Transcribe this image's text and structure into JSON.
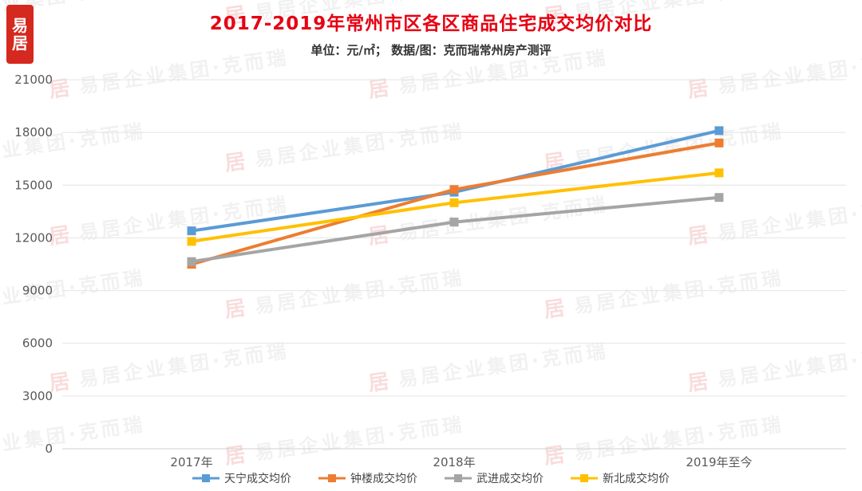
{
  "title": "2017-2019年常州市区各区商品住宅成交均价对比",
  "subtitle": "单位：元/㎡；  数据/图：克而瑞常州房产测评",
  "watermark": {
    "text": "易居企业集团·克而瑞",
    "logo_glyph": "居"
  },
  "corner_logo": {
    "top_char": "易",
    "bottom_char": "居"
  },
  "chart_data": {
    "type": "line",
    "categories": [
      "2017年",
      "2018年",
      "2019年至今"
    ],
    "series": [
      {
        "name": "天宁成交均价",
        "color": "#5B9BD5",
        "values": [
          12400,
          14600,
          18100
        ]
      },
      {
        "name": "钟楼成交均价",
        "color": "#ED7D31",
        "values": [
          10500,
          14750,
          17400
        ]
      },
      {
        "name": "武进成交均价",
        "color": "#A5A5A5",
        "values": [
          10650,
          12900,
          14300
        ]
      },
      {
        "name": "新北成交均价",
        "color": "#FFC000",
        "values": [
          11800,
          14000,
          15700
        ]
      }
    ],
    "ylim": [
      0,
      21000
    ],
    "yticks": [
      0,
      3000,
      6000,
      9000,
      12000,
      15000,
      18000,
      21000
    ],
    "grid": true,
    "legend_position": "bottom",
    "axis_label_color": "#595959",
    "gridline_color": "#e4e4e4",
    "axis_line_color": "#d0d0d0"
  }
}
